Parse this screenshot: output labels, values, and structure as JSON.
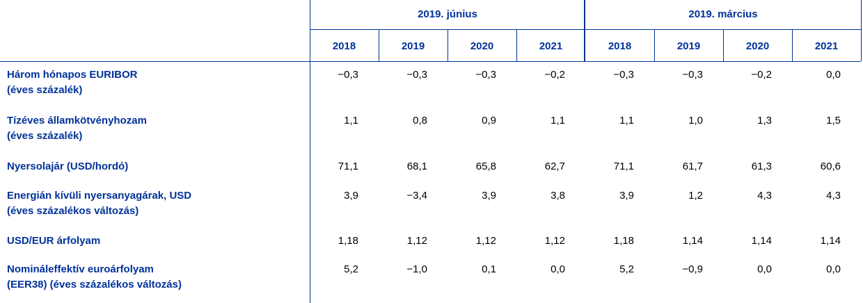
{
  "table": {
    "groups": [
      "2019. június",
      "2019. március"
    ],
    "years": [
      "2018",
      "2019",
      "2020",
      "2021",
      "2018",
      "2019",
      "2020",
      "2021"
    ],
    "rows": [
      {
        "label": [
          "Három hónapos EURIBOR",
          "(éves százalék)"
        ],
        "values": [
          "−0,3",
          "−0,3",
          "−0,3",
          "−0,2",
          "−0,3",
          "−0,3",
          "−0,2",
          "0,0"
        ]
      },
      {
        "label": [
          "Tízéves államkötvényhozam",
          "(éves százalék)"
        ],
        "values": [
          "1,1",
          "0,8",
          "0,9",
          "1,1",
          "1,1",
          "1,0",
          "1,3",
          "1,5"
        ]
      },
      {
        "label": [
          "Nyersolajár (USD/hordó)"
        ],
        "values": [
          "71,1",
          "68,1",
          "65,8",
          "62,7",
          "71,1",
          "61,7",
          "61,3",
          "60,6"
        ]
      },
      {
        "label": [
          "Energián kívüli nyersanyagárak, USD",
          "(éves százalékos változás)"
        ],
        "values": [
          "3,9",
          "−3,4",
          "3,9",
          "3,8",
          "3,9",
          "1,2",
          "4,3",
          "4,3"
        ]
      },
      {
        "label": [
          "USD/EUR árfolyam"
        ],
        "values": [
          "1,18",
          "1,12",
          "1,12",
          "1,12",
          "1,18",
          "1,14",
          "1,14",
          "1,14"
        ]
      },
      {
        "label": [
          "Nomináleffektív euroárfolyam",
          "(EER38) (éves százalékos változás)"
        ],
        "values": [
          "5,2",
          "−1,0",
          "0,1",
          "0,0",
          "5,2",
          "−0,9",
          "0,0",
          "0,0"
        ]
      }
    ]
  }
}
